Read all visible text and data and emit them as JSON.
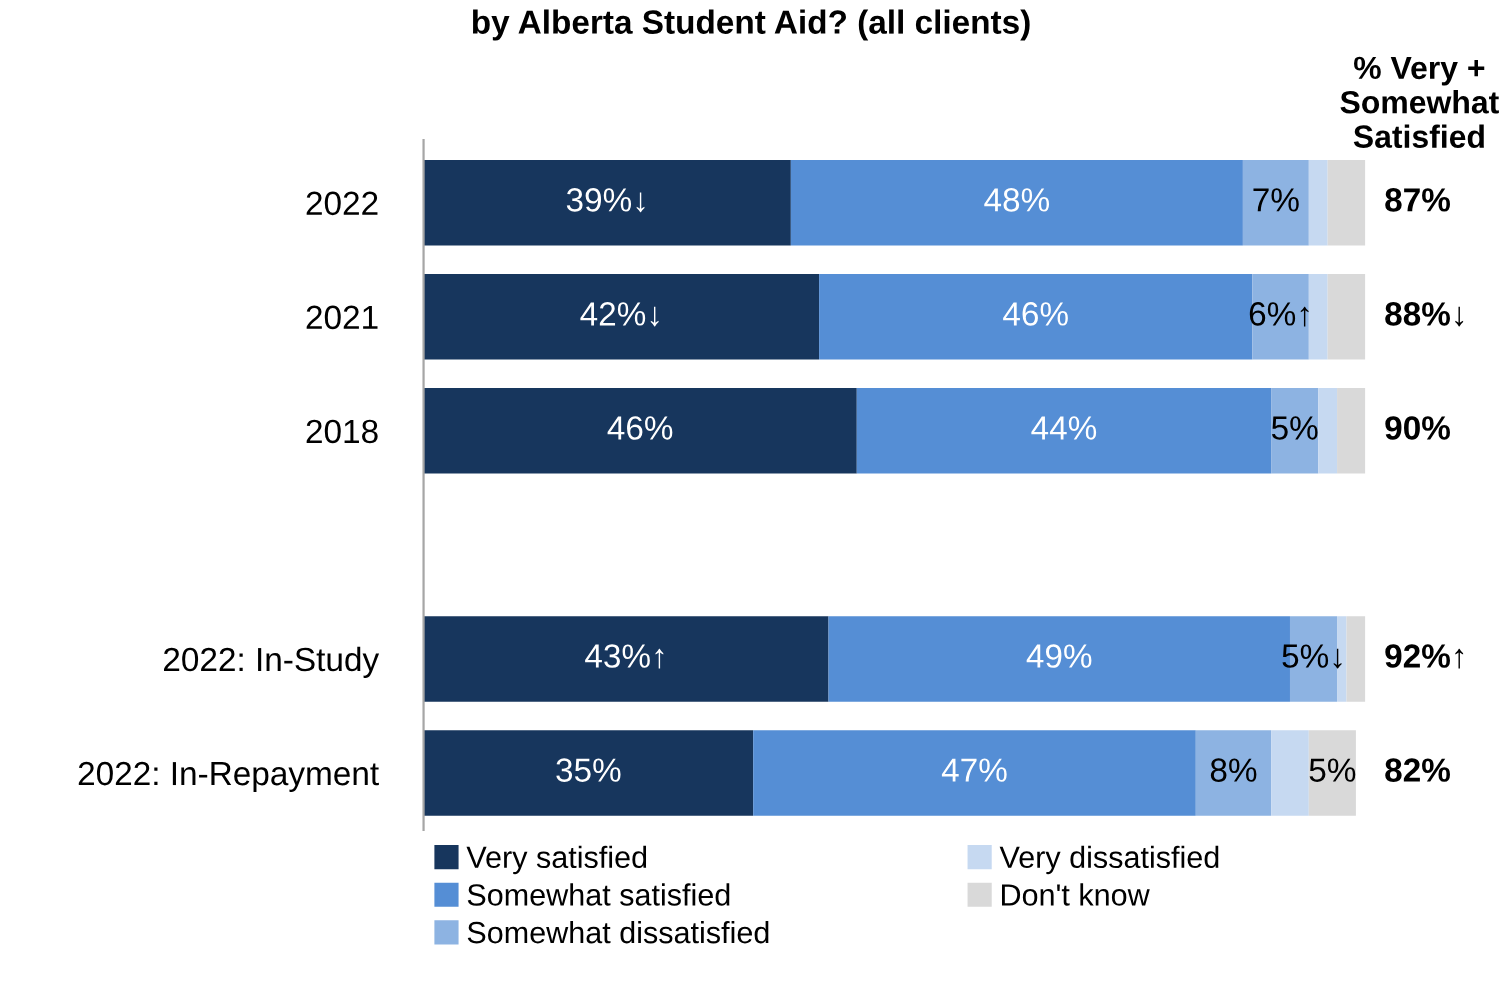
{
  "chart_data": {
    "type": "bar",
    "orientation": "horizontal",
    "stacked": true,
    "title": "by Alberta Student Aid? (all clients)",
    "categories": [
      "2022",
      "2021",
      "2018",
      null,
      "2022: In-Study",
      "2022: In-Repayment"
    ],
    "xlim": [
      0,
      100
    ],
    "grid": false,
    "legend": "bottom",
    "tick_labels": "y",
    "series": [
      {
        "name": "Very satisfied",
        "color": "#17365d",
        "values": [
          39,
          42,
          46,
          null,
          43,
          35
        ],
        "value_labels": [
          "39%↓",
          "42%↓",
          "46%",
          null,
          "43%↑",
          "35%"
        ]
      },
      {
        "name": "Somewhat satisfied",
        "color": "#558ed5",
        "values": [
          48,
          46,
          44,
          null,
          49,
          47
        ],
        "value_labels": [
          "48%",
          "46%",
          "44%",
          null,
          "49%",
          "47%"
        ]
      },
      {
        "name": "Somewhat dissatisfied",
        "color": "#8db3e2",
        "values": [
          7,
          6,
          5,
          null,
          5,
          8
        ],
        "value_labels": [
          "7%",
          "6%↑",
          "5%",
          null,
          "5%↓",
          "8%"
        ]
      },
      {
        "name": "Very dissatisfied",
        "color": "#c6d9f1",
        "values": [
          2,
          2,
          2,
          null,
          1,
          4
        ],
        "value_labels": [
          null,
          null,
          null,
          null,
          null,
          null
        ]
      },
      {
        "name": "Don't know",
        "color": "#d9d9d9",
        "values": [
          4,
          4,
          3,
          null,
          2,
          5
        ],
        "value_labels": [
          null,
          null,
          null,
          null,
          null,
          "5%"
        ]
      }
    ],
    "annotations": [
      "% Very +\nSomewhat\nSatisfied",
      "87%",
      "88%↓",
      "90%",
      "92%↑",
      "82%"
    ]
  }
}
